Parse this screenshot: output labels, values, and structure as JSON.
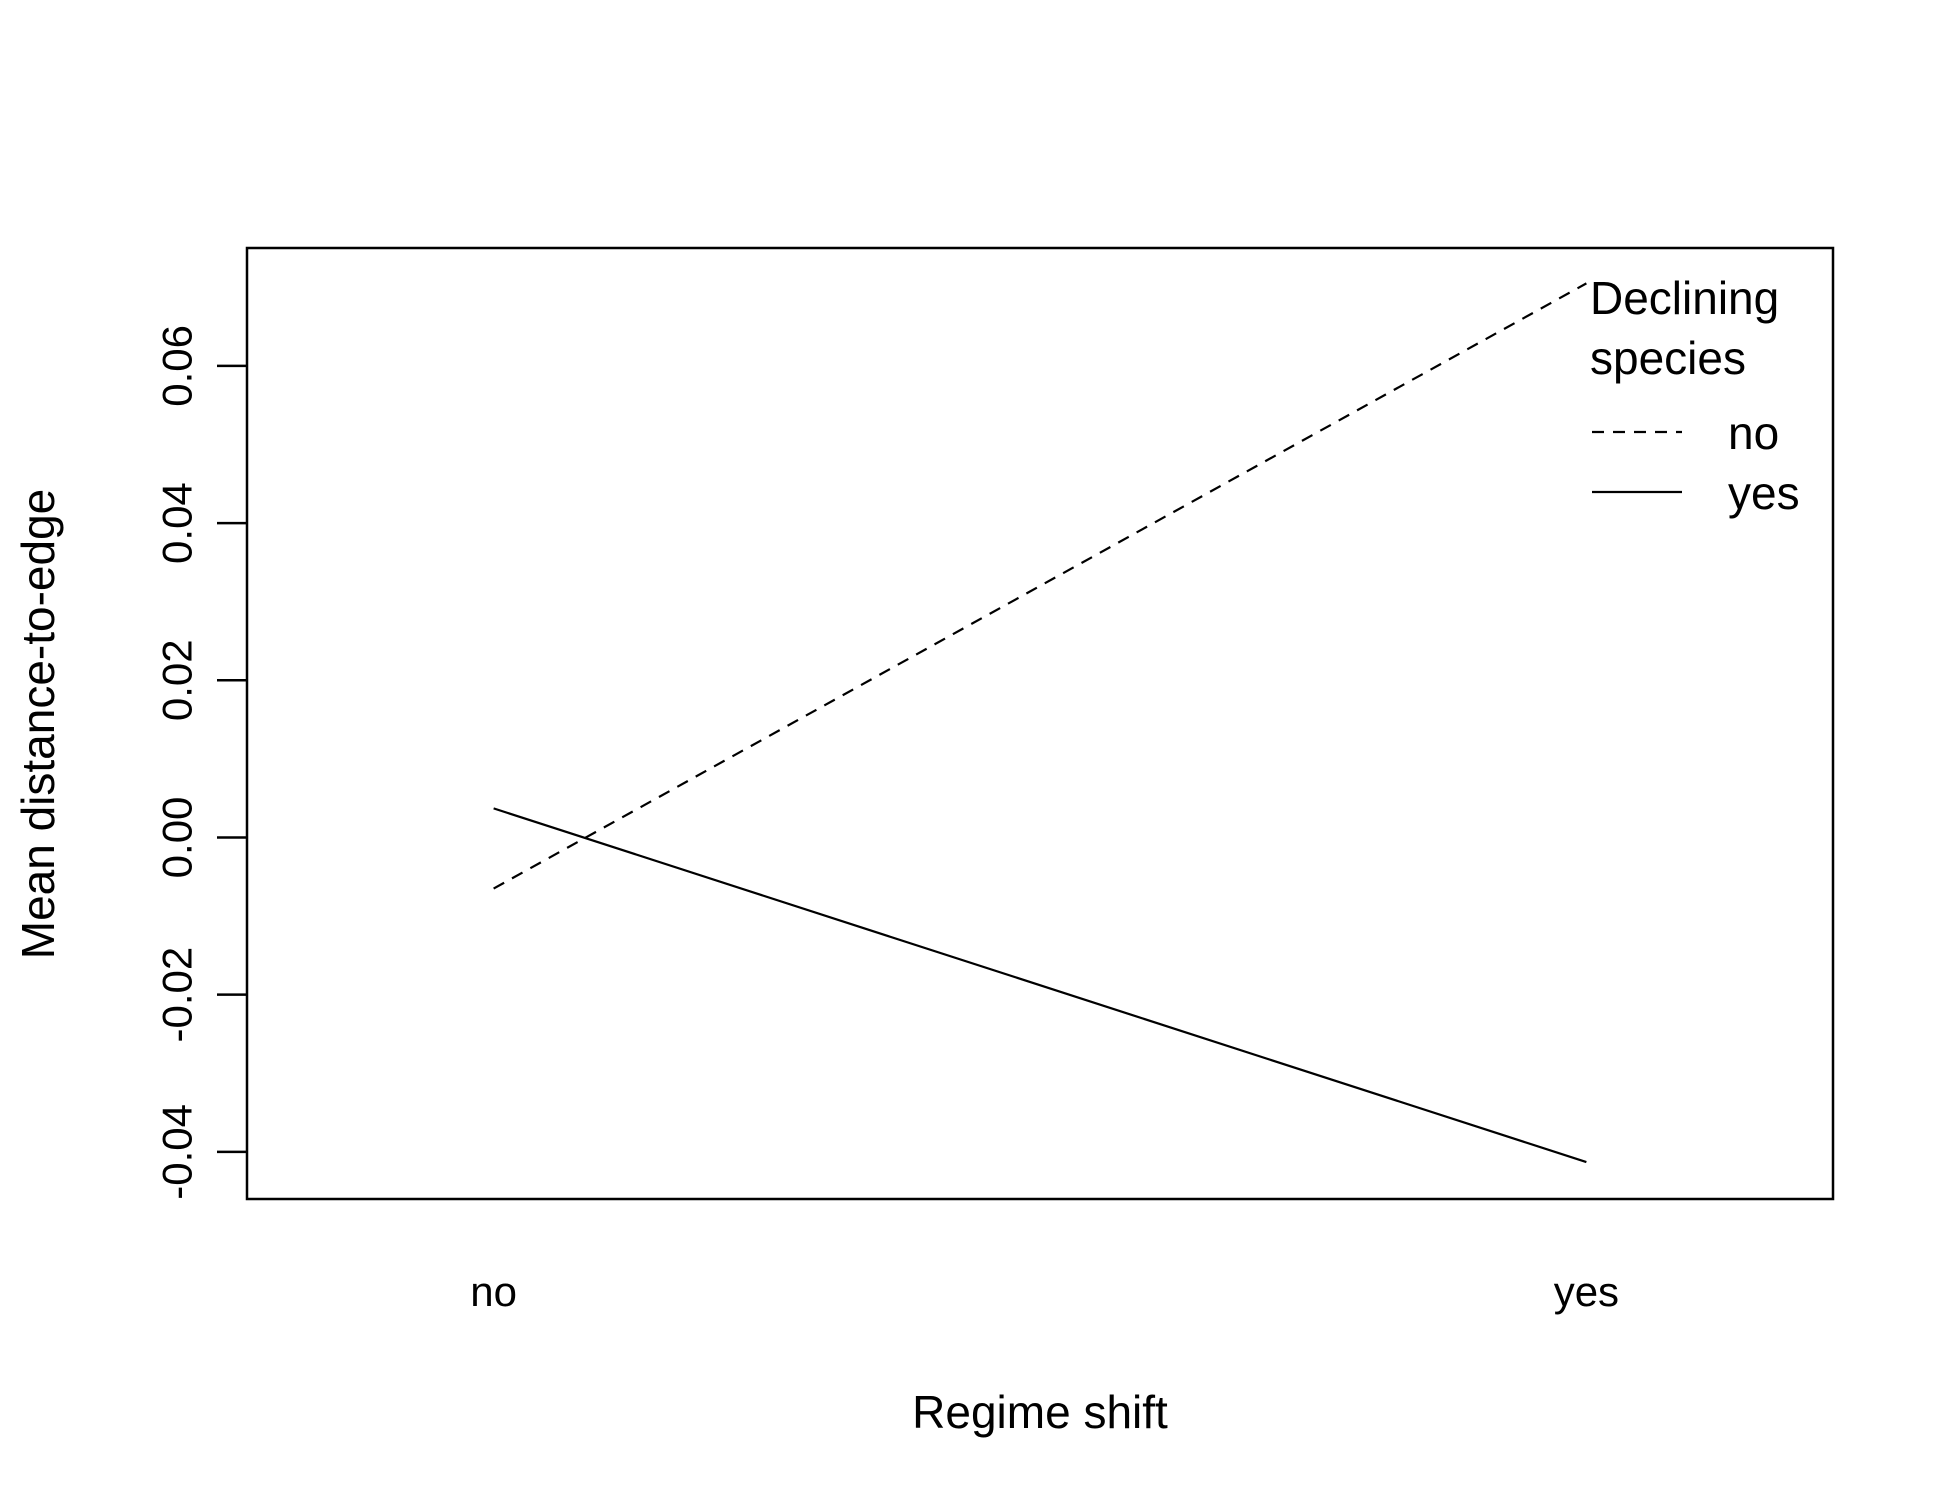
{
  "chart_data": {
    "type": "line",
    "xlabel": "Regime shift",
    "ylabel": "Mean distance-to-edge",
    "categories": [
      "no",
      "yes"
    ],
    "ylim": [
      -0.046,
      0.075
    ],
    "yticks": [
      -0.04,
      -0.02,
      0.0,
      0.02,
      0.04,
      0.06
    ],
    "ytick_labels": [
      "-0.04",
      "-0.02",
      "0.00",
      "0.02",
      "0.04",
      "0.06"
    ],
    "grid": false,
    "legend": {
      "title_lines": [
        "Declining",
        "species"
      ],
      "placement": "top-right",
      "boxed": false
    },
    "series": [
      {
        "name": "no",
        "values": [
          -0.0065,
          0.0705
        ],
        "line_style": "dashed"
      },
      {
        "name": "yes",
        "values": [
          0.0037,
          -0.0413
        ],
        "line_style": "solid"
      }
    ]
  }
}
